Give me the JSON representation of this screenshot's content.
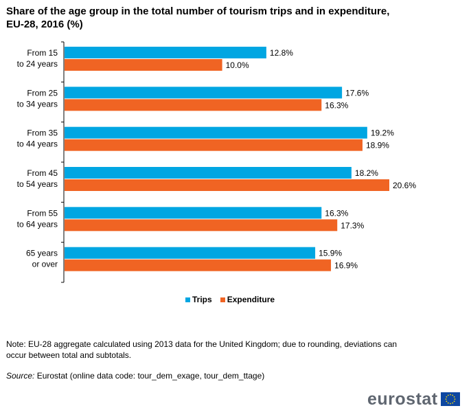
{
  "title": "Share of the age group in the total number of tourism trips and in expenditure, EU-28, 2016 (%)",
  "chart_data": {
    "type": "bar",
    "orientation": "horizontal",
    "categories": [
      [
        "From 15",
        "to 24 years"
      ],
      [
        "From 25",
        "to 34 years"
      ],
      [
        "From 35",
        "to 44 years"
      ],
      [
        "From 45",
        "to 54 years"
      ],
      [
        "From 55",
        "to 64 years"
      ],
      [
        "65 years",
        "or over"
      ]
    ],
    "series": [
      {
        "name": "Trips",
        "color": "#00a6e2",
        "values": [
          12.8,
          17.6,
          19.2,
          18.2,
          16.3,
          15.9
        ],
        "labels": [
          "12.8%",
          "17.6%",
          "19.2%",
          "18.2%",
          "16.3%",
          "15.9%"
        ]
      },
      {
        "name": "Expenditure",
        "color": "#f06423",
        "values": [
          10.0,
          16.3,
          18.9,
          20.6,
          17.3,
          16.9
        ],
        "labels": [
          "10.0%",
          "16.3%",
          "18.9%",
          "20.6%",
          "17.3%",
          "16.9%"
        ]
      }
    ],
    "xlim": [
      0,
      20.6
    ],
    "grid": false,
    "legend": "bottom-center"
  },
  "note": "Note: EU-28 aggregate calculated using 2013 data for the United Kingdom; due to rounding, deviations can occur between total and subtotals.",
  "source": {
    "label": "Source:",
    "text": "Eurostat (online data code: tour_dem_exage, tour_dem_ttage)"
  },
  "brand": {
    "wordmark": "eurostat",
    "flag_color": "#0e47a1",
    "star_color": "#ffdd00"
  }
}
